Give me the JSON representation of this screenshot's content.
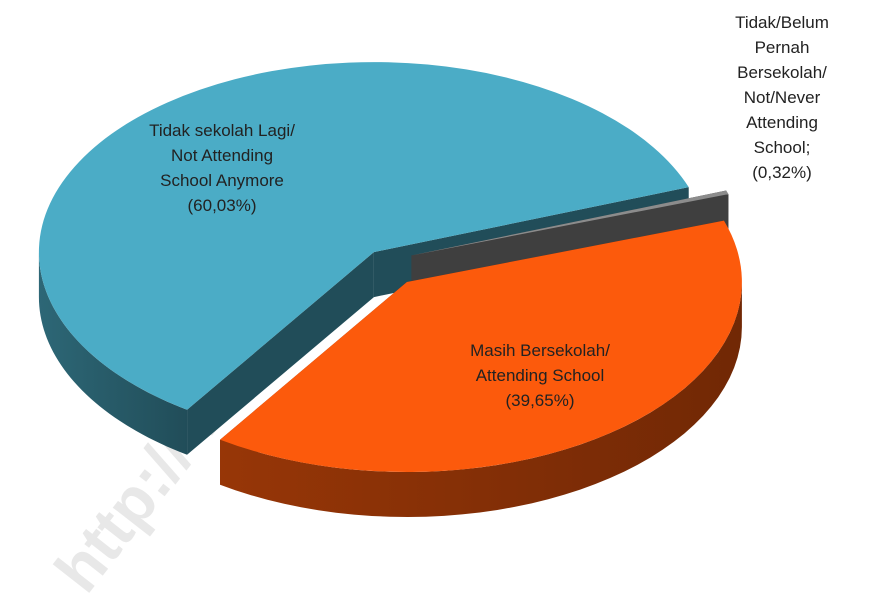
{
  "chart_data": {
    "type": "pie3d",
    "watermark": "http:// www. bp",
    "categories": [
      "Tidak sekolah Lagi/\nNot Attending\nSchool Anymore",
      "Tidak/Belum\nPernah\nBersekolah/\nNot/Never\nAttending School;",
      "Masih Bersekolah/\nAttending School"
    ],
    "values": [
      60.03,
      0.32,
      39.65
    ],
    "value_labels": [
      "(60,03%)",
      "(0,32%)",
      "(39,65%)"
    ],
    "colors": [
      "#4bacc6",
      "#8c8c8c",
      "#fc5a0c"
    ]
  }
}
